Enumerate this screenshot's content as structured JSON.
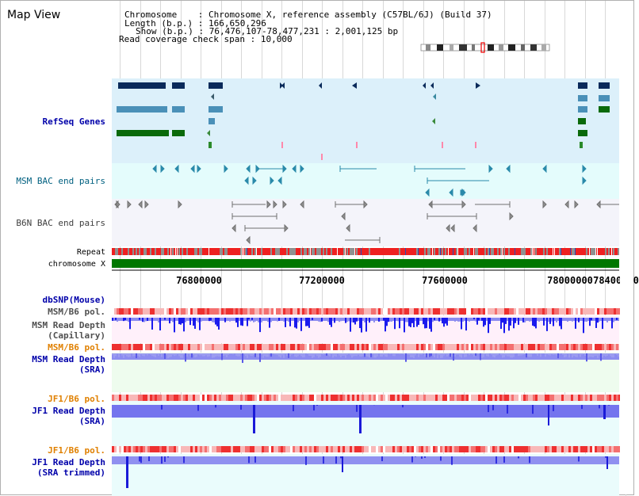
{
  "view": {
    "title": "Map View"
  },
  "info": {
    "chromosome_label": "Chromosome",
    "chromosome_value": "Chromosome X, reference assembly (C57BL/6J) (Build 37)",
    "length_label": "Length (b.p.)",
    "length_value": "166,650,296",
    "show_label": "Show (b.p.)",
    "show_value": "76,476,107-78,477,231 : 2,001,125 bp",
    "coverage_label": "Read coverage check span",
    "coverage_value": "10,000"
  },
  "tracks": {
    "refseq": "RefSeq Genes",
    "msm_bac": "MSM BAC end pairs",
    "b6n_bac": "B6N BAC end pairs",
    "repeat": "Repeat",
    "chromosome": "chromosome X",
    "dbsnp": "dbSNP(Mouse)",
    "msm_pol_1": "MSM/B6 pol.",
    "msm_depth_cap_1": "MSM Read Depth",
    "msm_depth_cap_2": "(Capillary)",
    "msm_pol_2": "MSM/B6 pol.",
    "msm_depth_sra_1": "MSM Read Depth",
    "msm_depth_sra_2": "(SRA)",
    "jf1_pol_1": "JF1/B6 pol.",
    "jf1_depth_sra_1": "JF1 Read Depth",
    "jf1_depth_sra_2": "(SRA)",
    "jf1_pol_2": "JF1/B6 pol.",
    "jf1_depth_trim_1": "JF1 Read Depth",
    "jf1_depth_trim_2": "(SRA trimmed)"
  },
  "axis": {
    "ticks": [
      "76800000",
      "77200000",
      "77600000",
      "78000000",
      "78400000"
    ]
  },
  "colors": {
    "refseq_bg": "#dcf0fa",
    "msm_bac_bg": "#e4fcfc",
    "b6n_bac_bg": "#f4f4fa",
    "chromosome_bar": "#007700",
    "depth_blue": "#2020ee",
    "depth_light": "#8c8cf0",
    "pol_red": "#ee2020"
  }
}
